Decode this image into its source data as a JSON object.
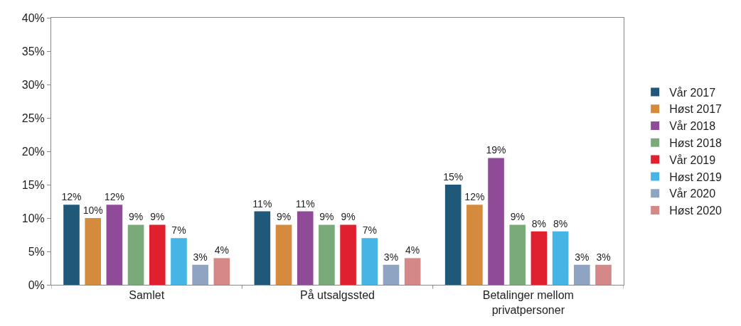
{
  "chart_data": {
    "type": "bar",
    "categories": [
      "Samlet",
      "På utsalgssted",
      "Betalinger mellom\nprivatpersoner"
    ],
    "series": [
      {
        "name": "Vår 2017",
        "color": "#1f5878",
        "values": [
          12,
          11,
          15
        ],
        "value_labels": [
          "12%",
          "11%",
          "15%"
        ]
      },
      {
        "name": "Høst 2017",
        "color": "#d48b3e",
        "values": [
          10,
          9,
          12
        ],
        "value_labels": [
          "10%",
          "9%",
          "12%"
        ]
      },
      {
        "name": "Vår 2018",
        "color": "#8f4b98",
        "values": [
          12,
          11,
          19
        ],
        "value_labels": [
          "12%",
          "11%",
          "19%"
        ]
      },
      {
        "name": "Høst 2018",
        "color": "#7aaa7a",
        "values": [
          9,
          9,
          9
        ],
        "value_labels": [
          "9%",
          "9%",
          "9%"
        ]
      },
      {
        "name": "Vår 2019",
        "color": "#e0202e",
        "values": [
          9,
          9,
          8
        ],
        "value_labels": [
          "9%",
          "9%",
          "8%"
        ]
      },
      {
        "name": "Høst 2019",
        "color": "#44b5e5",
        "values": [
          7,
          7,
          8
        ],
        "value_labels": [
          "7%",
          "7%",
          "8%"
        ]
      },
      {
        "name": "Vår 2020",
        "color": "#8fa3c3",
        "values": [
          3,
          3,
          3
        ],
        "value_labels": [
          "3%",
          "3%",
          "3%"
        ]
      },
      {
        "name": "Høst 2020",
        "color": "#d48888",
        "values": [
          4,
          4,
          3
        ],
        "value_labels": [
          "4%",
          "4%",
          "3%"
        ]
      }
    ],
    "ylim": [
      0,
      40
    ],
    "yticks": [
      {
        "value": 0,
        "label": "0%"
      },
      {
        "value": 5,
        "label": "5%"
      },
      {
        "value": 10,
        "label": "10%"
      },
      {
        "value": 15,
        "label": "15%"
      },
      {
        "value": 20,
        "label": "20%"
      },
      {
        "value": 25,
        "label": "25%"
      },
      {
        "value": 30,
        "label": "30%"
      },
      {
        "value": 35,
        "label": "35%"
      },
      {
        "value": 40,
        "label": "40%"
      }
    ],
    "legend": "right"
  }
}
